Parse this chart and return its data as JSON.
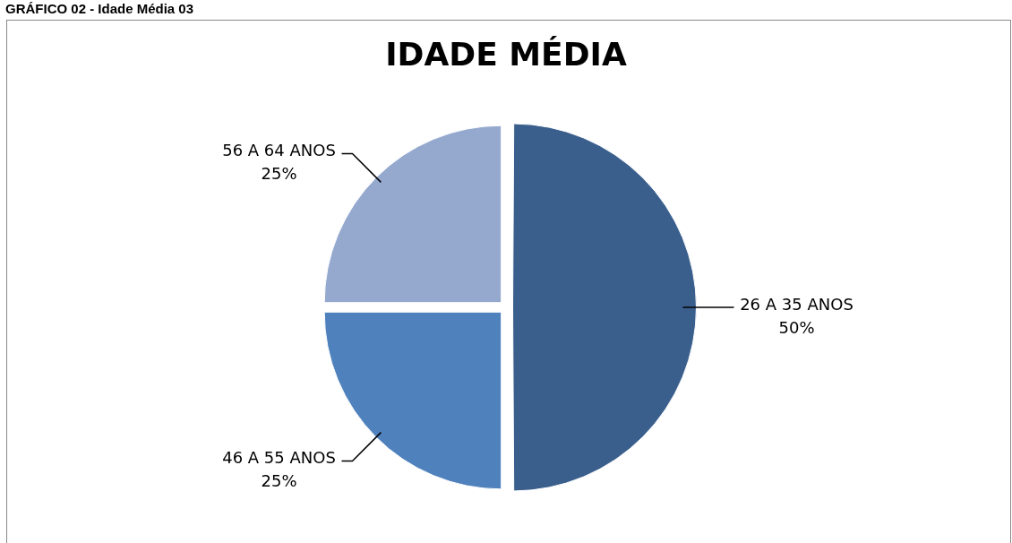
{
  "chart_data": {
    "type": "pie",
    "title": "IDADE MÉDIA",
    "annotations": [
      "GRÁFICO 02 - Idade Média 03"
    ],
    "categories": [
      "26 A 35 ANOS",
      "46 A 55 ANOS",
      "56 A 64 ANOS"
    ],
    "values": [
      50,
      25,
      25
    ],
    "value_labels": [
      "50%",
      "25%",
      "25%"
    ],
    "colors": [
      "#3a5f8d",
      "#4f81bd",
      "#95a9cf"
    ],
    "legend": false
  }
}
